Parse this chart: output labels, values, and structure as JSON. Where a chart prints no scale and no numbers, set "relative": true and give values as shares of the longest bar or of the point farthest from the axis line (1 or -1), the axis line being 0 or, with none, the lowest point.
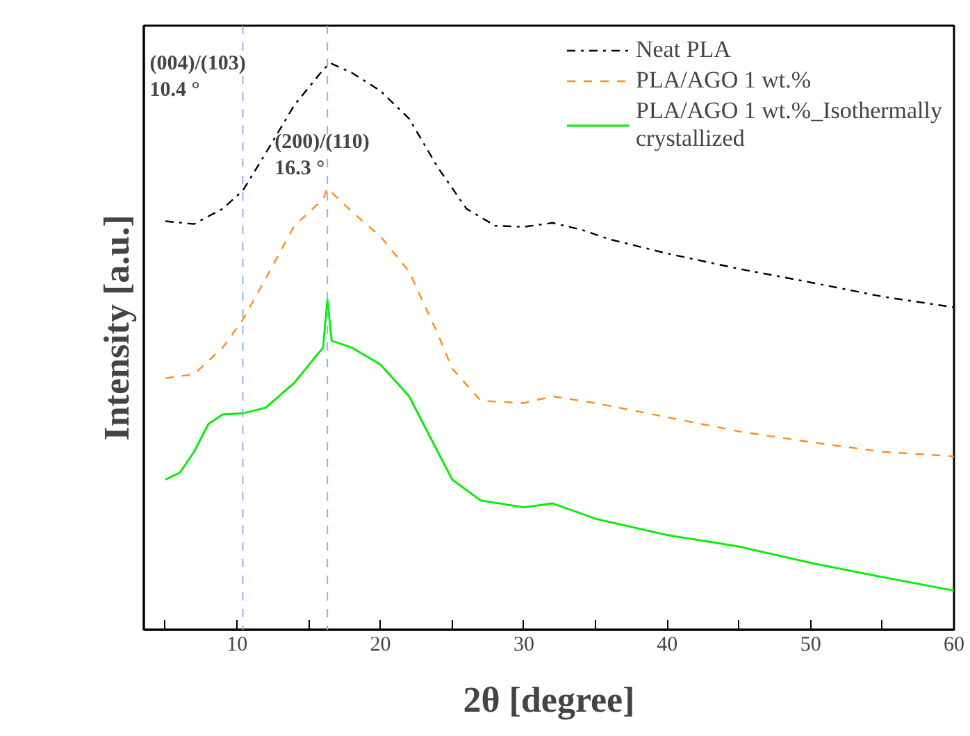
{
  "chart_data": {
    "type": "line",
    "relative": true,
    "xlabel": "2θ [degree]",
    "ylabel": "Intensity [a.u.]",
    "xlim": [
      3.5,
      60
    ],
    "xticks": [
      {
        "value": 5,
        "label": null
      },
      10,
      {
        "value": 15,
        "label": null
      },
      20,
      {
        "value": 25,
        "label": null
      },
      30,
      {
        "value": 35,
        "label": null
      },
      40,
      {
        "value": 45,
        "label": null
      },
      50,
      {
        "value": 55,
        "label": null
      },
      60
    ],
    "grid": false,
    "legend": "top right",
    "series": [
      {
        "name": "Neat PLA",
        "color": "#000000",
        "line_style": "dashdot",
        "x": [
          5,
          7,
          9,
          10.4,
          12,
          14,
          16,
          16.5,
          18,
          20,
          22,
          24,
          26,
          28,
          30,
          32,
          34,
          36,
          40,
          45,
          50,
          55,
          60
        ],
        "values": [
          0.721,
          0.716,
          0.743,
          0.775,
          0.841,
          0.926,
          0.988,
          1,
          0.983,
          0.951,
          0.902,
          0.816,
          0.743,
          0.713,
          0.711,
          0.718,
          0.706,
          0.689,
          0.664,
          0.637,
          0.613,
          0.588,
          0.569
        ]
      },
      {
        "name": "PLA/AGO 1 wt.%",
        "color": "#ff8c1a",
        "line_style": "dashed",
        "x": [
          5,
          7,
          9,
          10.4,
          12,
          14,
          16,
          16.3,
          18,
          20,
          22,
          24,
          25,
          27,
          30,
          32,
          35,
          40,
          45,
          50,
          55,
          60
        ],
        "values": [
          0.444,
          0.451,
          0.498,
          0.547,
          0.62,
          0.713,
          0.76,
          0.779,
          0.738,
          0.694,
          0.632,
          0.522,
          0.461,
          0.404,
          0.4,
          0.412,
          0.4,
          0.375,
          0.35,
          0.331,
          0.314,
          0.306
        ]
      },
      {
        "name": "PLA/AGO 1 wt.%_Isothermally\ncrystallized",
        "color": "#00ee00",
        "line_style": "solid",
        "x": [
          5,
          6,
          7,
          8,
          9,
          10.4,
          12,
          14,
          16,
          16.3,
          16.6,
          18,
          20,
          22,
          24,
          25,
          27,
          30,
          32,
          35,
          40,
          45,
          50,
          55,
          60
        ],
        "values": [
          0.265,
          0.277,
          0.314,
          0.363,
          0.38,
          0.382,
          0.392,
          0.436,
          0.498,
          0.583,
          0.51,
          0.498,
          0.468,
          0.412,
          0.314,
          0.265,
          0.228,
          0.216,
          0.223,
          0.196,
          0.167,
          0.147,
          0.118,
          0.093,
          0.069
        ]
      }
    ],
    "ref_lines": [
      {
        "axis": "x",
        "value": 10.4,
        "label": "(004)/(103)\n10.4 °",
        "color": "#8fb4e8",
        "line_style": "dashed"
      },
      {
        "axis": "x",
        "value": 16.3,
        "label": "(200)/(110)\n16.3 °",
        "color": "#8fb4e8",
        "line_style": "dashed"
      }
    ]
  }
}
